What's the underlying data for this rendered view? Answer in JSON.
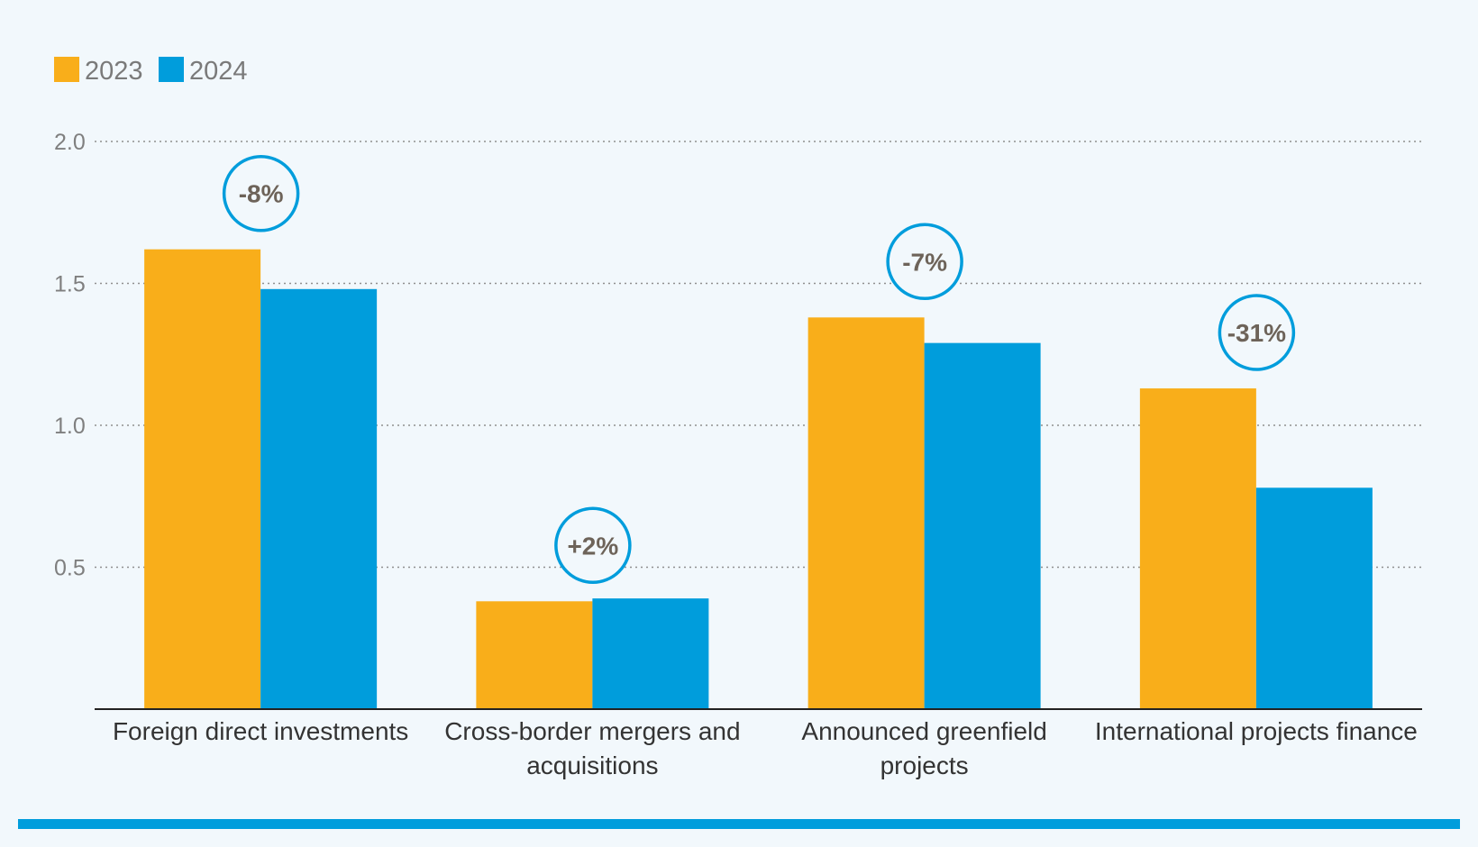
{
  "chart_data": {
    "type": "bar",
    "title": "",
    "xlabel": "",
    "ylabel": "",
    "ylim": [
      0,
      2.0
    ],
    "yticks": [
      "0.5",
      "1.0",
      "1.5",
      "2.0"
    ],
    "categories": [
      [
        "Foreign direct investments"
      ],
      [
        "Cross-border mergers and",
        "acquisitions"
      ],
      [
        "Announced greenfield",
        "projects"
      ],
      [
        "International projects finance"
      ]
    ],
    "series": [
      {
        "name": "2023",
        "color": "#f9ae1a",
        "values": [
          1.62,
          0.38,
          1.38,
          1.13
        ]
      },
      {
        "name": "2024",
        "color": "#009ddc",
        "values": [
          1.48,
          0.39,
          1.29,
          0.78
        ]
      }
    ],
    "annotations": [
      "-8%",
      "+2%",
      "-7%",
      "-31%"
    ],
    "grid": true,
    "legend_position": "top-left",
    "annotation_color": "#009ddc"
  }
}
